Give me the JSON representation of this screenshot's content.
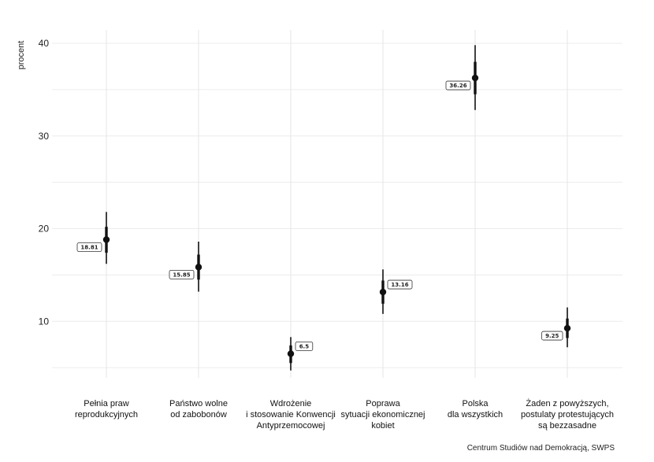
{
  "chart_data": {
    "type": "pointrange",
    "ylabel": "procent",
    "ylim": [
      4,
      42
    ],
    "yticks": [
      10,
      20,
      30,
      40
    ],
    "categories": [
      [
        "Pełnia praw",
        "reprodukcyjnych"
      ],
      [
        "Państwo wolne",
        "od zabobonów"
      ],
      [
        "Wdrożenie",
        "i stosowanie Konwencji",
        "Antyprzemocowej"
      ],
      [
        "Poprawa",
        "sytuacji ekonomicznej",
        "kobiet"
      ],
      [
        "Polska",
        "dla wszystkich"
      ],
      [
        "Żaden z powyższych,",
        "postulaty protestujących",
        "są bezzasadne"
      ]
    ],
    "values": [
      18.81,
      15.85,
      6.5,
      13.16,
      36.26,
      9.25
    ],
    "labels": [
      "18.81",
      "15.85",
      "6.5",
      "13.16",
      "36.26",
      "9.25"
    ],
    "label_side": [
      "left",
      "left",
      "right",
      "right",
      "left",
      "left"
    ],
    "ci_outer": [
      [
        16.2,
        21.8
      ],
      [
        13.2,
        18.6
      ],
      [
        4.7,
        8.3
      ],
      [
        10.8,
        15.6
      ],
      [
        32.8,
        39.8
      ],
      [
        7.2,
        11.5
      ]
    ],
    "ci_inner": [
      [
        17.4,
        20.2
      ],
      [
        14.5,
        17.2
      ],
      [
        5.5,
        7.4
      ],
      [
        11.9,
        14.4
      ],
      [
        34.5,
        38.0
      ],
      [
        8.2,
        10.3
      ]
    ]
  },
  "caption": "Centrum Studiów nad Demokracją, SWPS"
}
